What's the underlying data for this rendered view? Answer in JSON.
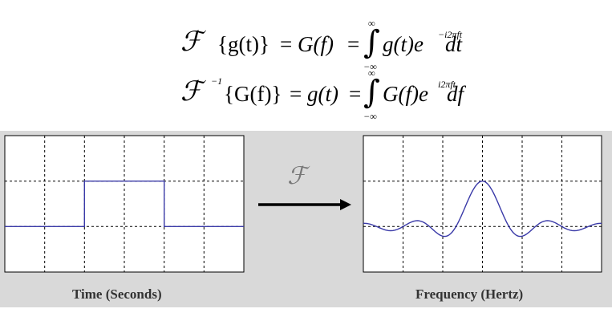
{
  "formulas": {
    "forward": {
      "lhs_symbol": "ℱ",
      "lhs_arg": "{g(t)}",
      "eq1": "=",
      "mid": "G(f)",
      "eq2": "=",
      "integral": "∫",
      "upper": "∞",
      "lower": "−∞",
      "integrand": "g(t)e",
      "exponent": "−i2πft",
      "differential": "dt"
    },
    "inverse": {
      "lhs_symbol": "ℱ",
      "lhs_sup": "−1",
      "lhs_arg": "{G(f)}",
      "eq1": "=",
      "mid": "g(t)",
      "eq2": "=",
      "integral": "∫",
      "upper": "∞",
      "lower": "−∞",
      "integrand": "G(f)e",
      "exponent": "i2πft",
      "differential": "df"
    }
  },
  "transform_symbol": "ℱ",
  "captions": {
    "left": "Time (Seconds)",
    "right": "Frequency (Hertz)"
  },
  "colors": {
    "signal": "#3a3aa8",
    "panel_bg": "#d9d9d9",
    "plot_bg": "#ffffff",
    "grid": "#000000"
  }
}
